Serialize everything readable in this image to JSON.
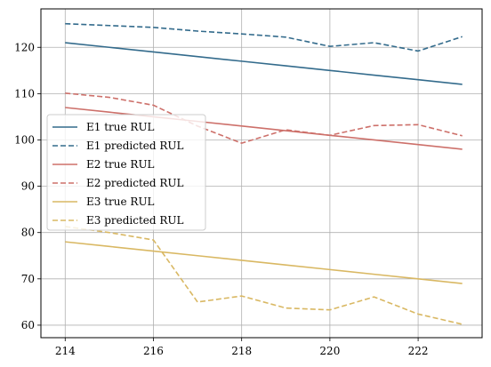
{
  "chart_data": {
    "type": "line",
    "title": "",
    "xlabel": "",
    "ylabel": "",
    "xlim": [
      213.45,
      223.45
    ],
    "ylim": [
      57.3,
      128.3
    ],
    "grid": true,
    "legend_position": "center-left",
    "x": [
      214,
      215,
      216,
      217,
      218,
      219,
      220,
      221,
      222,
      223
    ],
    "x_ticks": [
      214,
      216,
      218,
      220,
      222
    ],
    "y_ticks": [
      60,
      70,
      80,
      90,
      100,
      110,
      120
    ],
    "series": [
      {
        "name": "E1 true RUL",
        "color": "#336b8c",
        "dash": "solid",
        "values": [
          121,
          120,
          119,
          118,
          117,
          116,
          115,
          114,
          113,
          112
        ]
      },
      {
        "name": "E1 predicted RUL",
        "color": "#336b8c",
        "dash": "dashed",
        "values": [
          125.1,
          124.7,
          124.3,
          123.5,
          122.9,
          122.2,
          120.2,
          121.0,
          119.2,
          122.3
        ]
      },
      {
        "name": "E2 true RUL",
        "color": "#cd706a",
        "dash": "solid",
        "values": [
          107,
          106,
          105,
          104,
          103,
          102,
          101,
          100,
          99,
          98
        ]
      },
      {
        "name": "E2 predicted RUL",
        "color": "#cd706a",
        "dash": "dashed",
        "values": [
          110.1,
          109.2,
          107.5,
          103.0,
          99.3,
          102.2,
          101.0,
          103.1,
          103.3,
          100.9
        ]
      },
      {
        "name": "E3 true RUL",
        "color": "#d9b863",
        "dash": "solid",
        "values": [
          78,
          77,
          76,
          75,
          74,
          73,
          72,
          71,
          70,
          69
        ]
      },
      {
        "name": "E3 predicted RUL",
        "color": "#d9b863",
        "dash": "dashed",
        "values": [
          81.3,
          80.0,
          78.4,
          65.0,
          66.3,
          63.7,
          63.3,
          66.1,
          62.4,
          60.2
        ]
      }
    ]
  }
}
